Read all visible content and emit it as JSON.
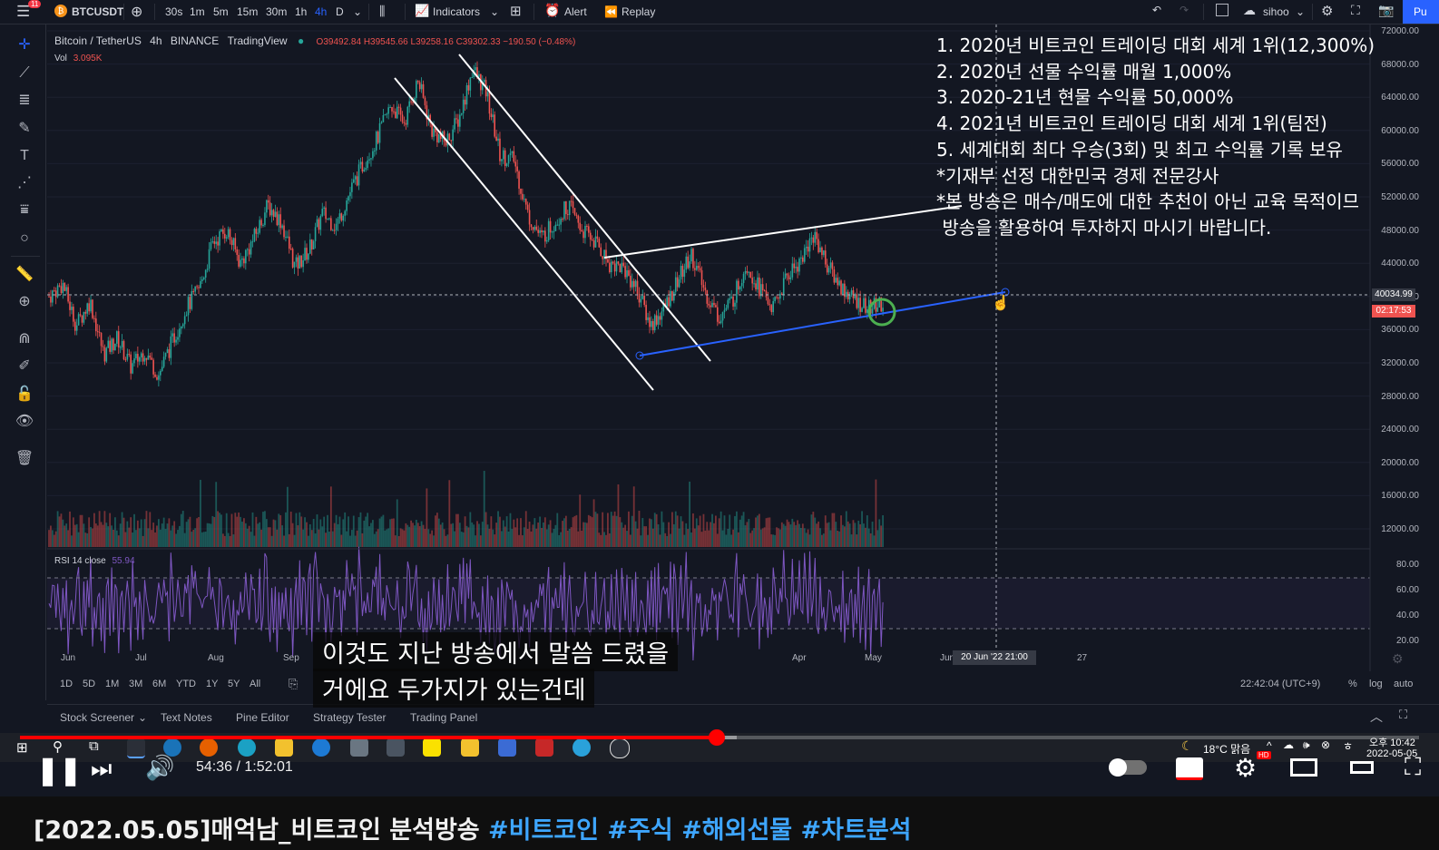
{
  "toolbar": {
    "notif_badge": "11",
    "symbol": "BTCUSDT",
    "intervals": [
      "30s",
      "1m",
      "5m",
      "15m",
      "30m",
      "1h",
      "4h",
      "D"
    ],
    "active_interval": "4h",
    "indicators_label": "Indicators",
    "alert_label": "Alert",
    "replay_label": "Replay",
    "user": "sihoo",
    "publish_partial": "Pu"
  },
  "legend": {
    "title": "Bitcoin / TetherUS",
    "interval": "4h",
    "exchange": "BINANCE",
    "source": "TradingView",
    "ohlc": "O39492.84 H39545.66 L39258.16 C39302.33 −190.50 (−0.48%)",
    "vol_label": "Vol",
    "vol_value": "3.095K",
    "rsi_label": "RSI 14 close",
    "rsi_value": "55.94"
  },
  "chart_data": {
    "type": "candlestick",
    "symbol": "BTCUSDT",
    "interval": "4h",
    "price_axis": [
      "72000.00",
      "68000.00",
      "64000.00",
      "60000.00",
      "56000.00",
      "52000.00",
      "48000.00",
      "44000.00",
      "40000.00",
      "36000.00",
      "32000.00",
      "28000.00",
      "24000.00",
      "20000.00",
      "16000.00",
      "12000.00"
    ],
    "rsi_axis": [
      "80.00",
      "60.00",
      "40.00",
      "20.00"
    ],
    "time_axis": [
      "Jun",
      "Jul",
      "Aug",
      "Sep",
      "Apr",
      "May",
      "Jun",
      "27"
    ],
    "crosshair_time": "20 Jun '22  21:00",
    "crosshair_price": "40034.99",
    "countdown": "02:17:53",
    "price_path": [
      40000,
      41500,
      36500,
      39500,
      33000,
      35000,
      31500,
      33500,
      30500,
      34500,
      38500,
      41000,
      46500,
      48000,
      44000,
      47000,
      51000,
      49000,
      43500,
      45500,
      50000,
      48500,
      52500,
      56000,
      59000,
      63000,
      61000,
      66000,
      60000,
      58500,
      61500,
      67500,
      64500,
      57000,
      56500,
      50000,
      47000,
      49000,
      51000,
      48000,
      46500,
      44000,
      43500,
      41000,
      36500,
      38500,
      42000,
      45000,
      40500,
      37500,
      39500,
      44000,
      41000,
      38500,
      42500,
      44500,
      47500,
      43500,
      41000,
      39500,
      38500,
      39302
    ]
  },
  "info_text": [
    "1. 2020년 비트코인 트레이딩 대회 세계 1위(12,300%)",
    "2. 2020년 선물 수익률 매월 1,000%",
    "3. 2020-21년 현물 수익률 50,000%",
    "4. 2021년 비트코인 트레이딩 대회 세계 1위(팀전)",
    "5. 세계대회 최다 우승(3회) 및 최고 수익률 기록 보유",
    "*기재부 선정 대한민국 경제 전문강사",
    "*본 방송은 매수/매도에 대한 추천이 아닌 교육 목적이므",
    " 방송을 활용하여 투자하지 마시기 바랍니다."
  ],
  "range_bar": {
    "ranges": [
      "1D",
      "5D",
      "1M",
      "3M",
      "6M",
      "YTD",
      "1Y",
      "5Y",
      "All"
    ],
    "clock": "22:42:04 (UTC+9)",
    "pct": "%",
    "log": "log",
    "auto": "auto"
  },
  "panels": [
    "Stock Screener",
    "Text Notes",
    "Pine Editor",
    "Strategy Tester",
    "Trading Panel"
  ],
  "subtitles": [
    "이것도 지난 방송에서 말씀 드렸을",
    "거에요 두가지가 있는건데"
  ],
  "taskbar": {
    "weather": "18°C 맑음",
    "time": "오후 10:42",
    "date": "2022-05-05"
  },
  "player": {
    "time": "54:36 / 1:52:01",
    "progress": 0.498,
    "hd_badge": "HD"
  },
  "video_title": {
    "text": "[2022.05.05]매억남_비트코인 분석방송 ",
    "tags": [
      "#비트코인",
      "#주식",
      "#해외선물",
      "#차트분석"
    ]
  },
  "colors": {
    "up": "#26a69a",
    "down": "#ef5350",
    "rsi": "#7e57c2",
    "trendline": "#2962ff",
    "youtube_red": "#ff0000",
    "hashtag": "#3ea6ff"
  }
}
